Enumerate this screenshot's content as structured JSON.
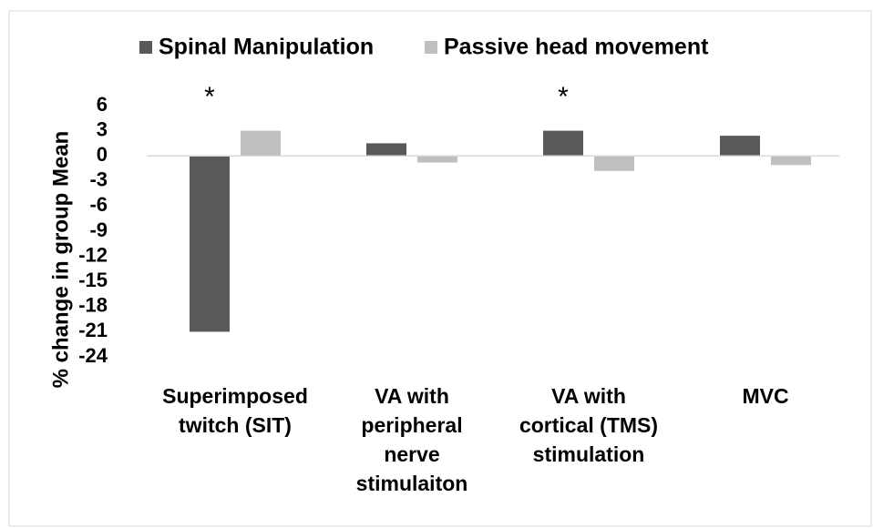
{
  "chart_data": {
    "type": "bar",
    "ylabel": "% change in group Mean",
    "categories": [
      "Superimposed twitch (SIT)",
      "VA with peripheral nerve stimulaiton",
      "VA with cortical (TMS) stimulation",
      "MVC"
    ],
    "series": [
      {
        "name": "Spinal Manipulation",
        "color": "#595959",
        "values": [
          -21,
          1.5,
          3,
          2.4
        ]
      },
      {
        "name": "Passive head movement",
        "color": "#bfbfbf",
        "values": [
          3,
          -0.8,
          -1.8,
          -1.1
        ]
      }
    ],
    "ylim": [
      -24,
      6
    ],
    "yticks": [
      6,
      3,
      0,
      -3,
      -6,
      -9,
      -12,
      -15,
      -18,
      -21,
      -24
    ],
    "annotations": [
      {
        "text": "*",
        "category": "Superimposed twitch (SIT)",
        "series": "Spinal Manipulation"
      },
      {
        "text": "*",
        "category": "VA with cortical (TMS) stimulation",
        "series": "Spinal Manipulation"
      }
    ],
    "legend": "top"
  }
}
